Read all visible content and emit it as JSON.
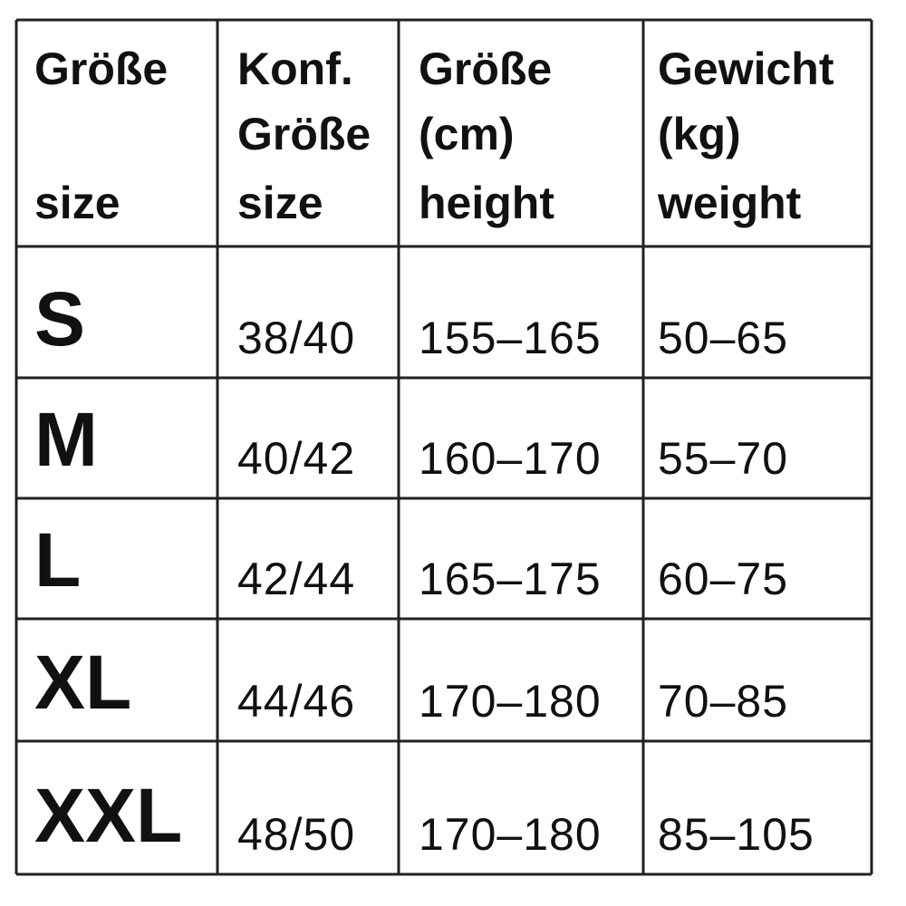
{
  "table": {
    "header": [
      [
        "Größe",
        "size"
      ],
      [
        "Konf.",
        "Größe",
        "size"
      ],
      [
        "Größe",
        "(cm)",
        "height"
      ],
      [
        "Gewicht",
        "(kg)",
        "weight"
      ]
    ],
    "rows": [
      [
        "S",
        "38/40",
        "155–165",
        "50–65"
      ],
      [
        "M",
        "40/42",
        "160–170",
        "55–70"
      ],
      [
        "L",
        "42/44",
        "165–175",
        "60–75"
      ],
      [
        "XL",
        "44/46",
        "170–180",
        "70–85"
      ],
      [
        "XXL",
        "48/50",
        "170–180",
        "85–105"
      ]
    ]
  }
}
